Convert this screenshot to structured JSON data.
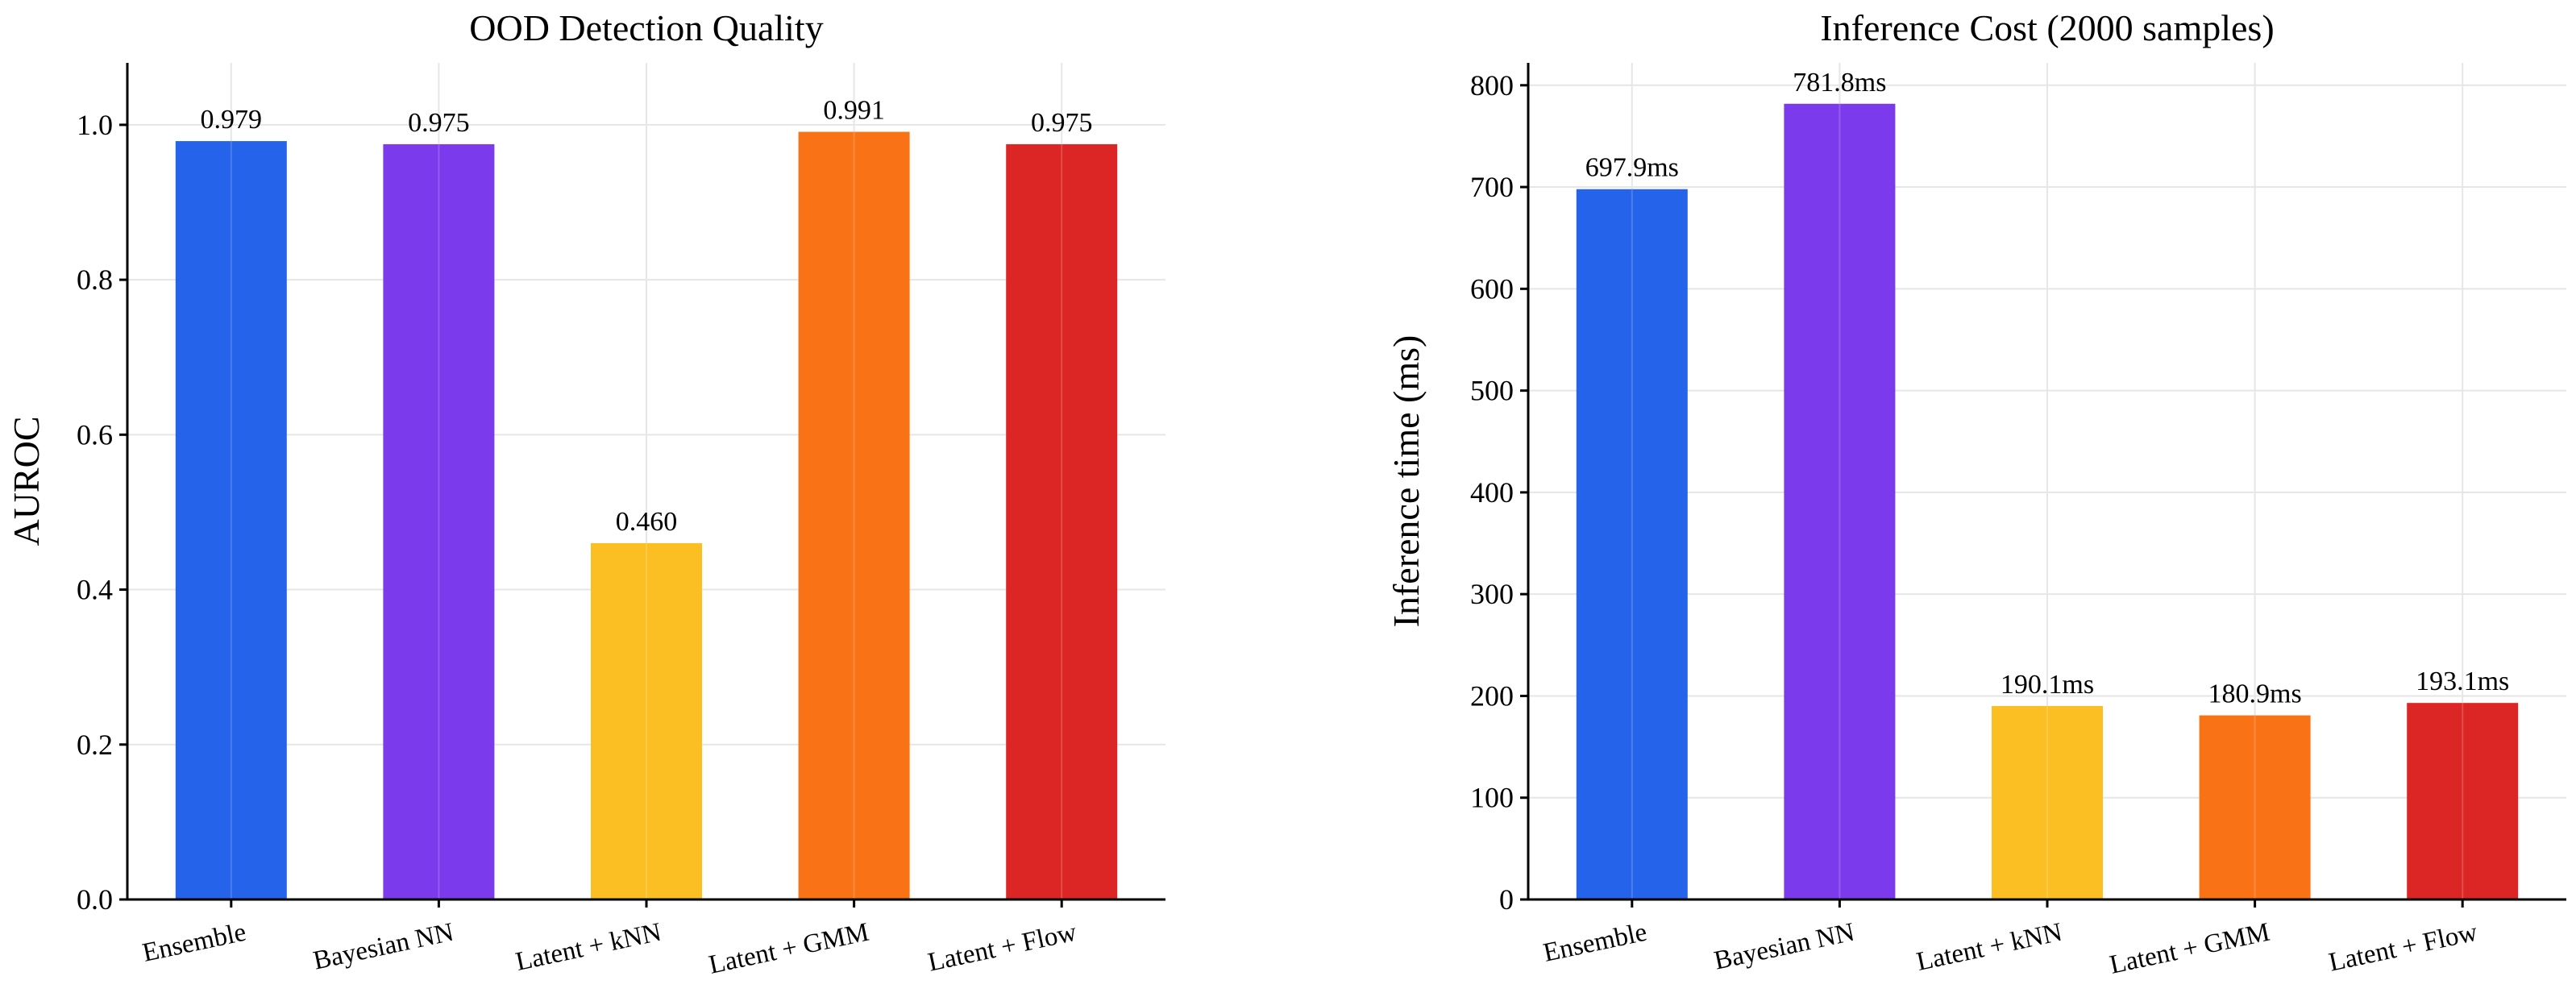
{
  "chart_data": [
    {
      "type": "bar",
      "title": "OOD Detection Quality",
      "xlabel": "",
      "ylabel": "AUROC",
      "categories": [
        "Ensemble",
        "Bayesian NN",
        "Latent + kNN",
        "Latent + GMM",
        "Latent + Flow"
      ],
      "values": [
        0.979,
        0.975,
        0.46,
        0.991,
        0.975
      ],
      "value_labels": [
        "0.979",
        "0.975",
        "0.460",
        "0.991",
        "0.975"
      ],
      "colors": [
        "#2563eb",
        "#7c3aed",
        "#fbbf24",
        "#f97316",
        "#dc2626"
      ],
      "ylim": [
        0,
        1.08
      ],
      "yticks": [
        0.0,
        0.2,
        0.4,
        0.6,
        0.8,
        1.0
      ],
      "ytick_labels": [
        "0.0",
        "0.2",
        "0.4",
        "0.6",
        "0.8",
        "1.0"
      ],
      "grid": true
    },
    {
      "type": "bar",
      "title": "Inference Cost (2000 samples)",
      "xlabel": "",
      "ylabel": "Inference time (ms)",
      "categories": [
        "Ensemble",
        "Bayesian NN",
        "Latent + kNN",
        "Latent + GMM",
        "Latent + Flow"
      ],
      "values": [
        697.9,
        781.8,
        190.1,
        180.9,
        193.1
      ],
      "value_labels": [
        "697.9ms",
        "781.8ms",
        "190.1ms",
        "180.9ms",
        "193.1ms"
      ],
      "colors": [
        "#2563eb",
        "#7c3aed",
        "#fbbf24",
        "#f97316",
        "#dc2626"
      ],
      "ylim": [
        0,
        822
      ],
      "yticks": [
        0,
        100,
        200,
        300,
        400,
        500,
        600,
        700,
        800
      ],
      "ytick_labels": [
        "0",
        "100",
        "200",
        "300",
        "400",
        "500",
        "600",
        "700",
        "800"
      ],
      "grid": true
    }
  ]
}
